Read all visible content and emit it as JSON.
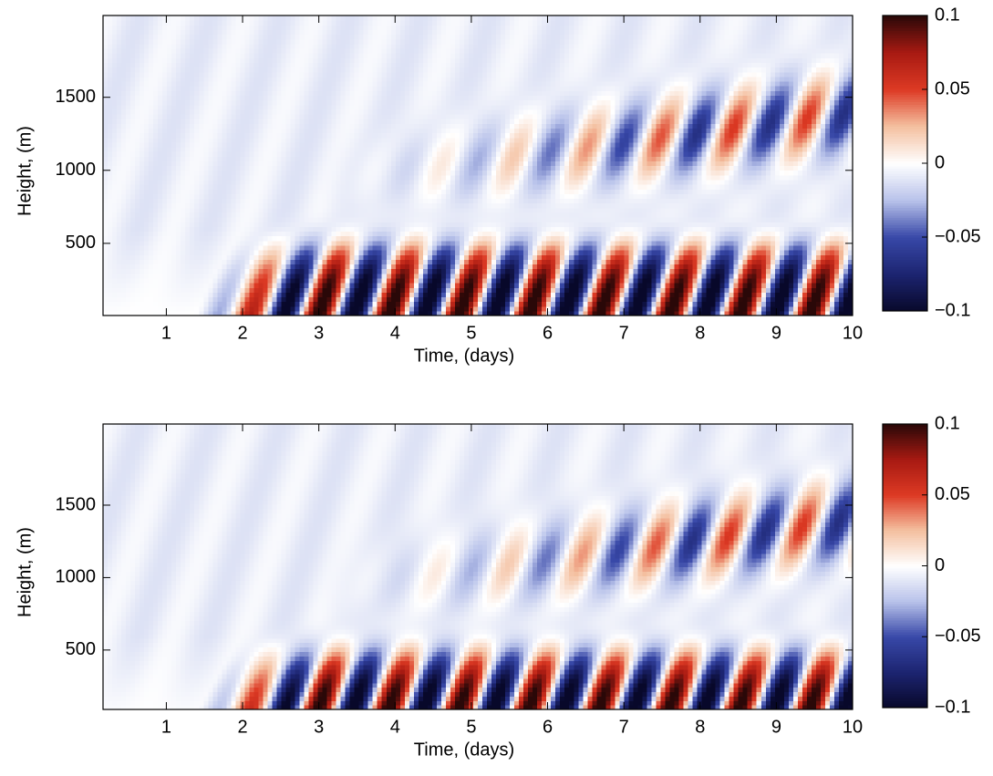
{
  "chart_data": [
    {
      "type": "heatmap",
      "xlabel": "Time, (days)",
      "ylabel": "Height, (m)",
      "xlim": [
        0.17,
        10
      ],
      "ylim": [
        6,
        2060
      ],
      "xticks": [
        1,
        2,
        3,
        4,
        5,
        6,
        7,
        8,
        9,
        10
      ],
      "yticks": [
        500,
        1000,
        1500
      ],
      "clim": [
        -0.1,
        0.1
      ],
      "cticks": [
        {
          "value": -0.1,
          "label": "−0.1"
        },
        {
          "value": -0.05,
          "label": "−0.05"
        },
        0,
        0.05,
        0.1
      ],
      "colorscale": [
        "#08082a",
        "#1c2470",
        "#3848a8",
        "#b8c2ea",
        "#ffffff",
        "#f4c0a0",
        "#dd3a24",
        "#a81a12",
        "#2a0808"
      ]
    },
    {
      "type": "heatmap",
      "xlabel": "Time, (days)",
      "ylabel": "Height, (m)",
      "xlim": [
        0.17,
        10
      ],
      "ylim": [
        90,
        2060
      ],
      "xticks": [
        1,
        2,
        3,
        4,
        5,
        6,
        7,
        8,
        9,
        10
      ],
      "yticks": [
        500,
        1000,
        1500
      ],
      "clim": [
        -0.1,
        0.1
      ],
      "cticks": [
        {
          "value": -0.1,
          "label": "−0.1"
        },
        {
          "value": -0.05,
          "label": "−0.05"
        },
        0,
        0.05,
        0.1
      ],
      "colorscale": [
        "#08082a",
        "#1c2470",
        "#3848a8",
        "#b8c2ea",
        "#ffffff",
        "#f4c0a0",
        "#dd3a24",
        "#a81a12",
        "#2a0808"
      ]
    }
  ]
}
